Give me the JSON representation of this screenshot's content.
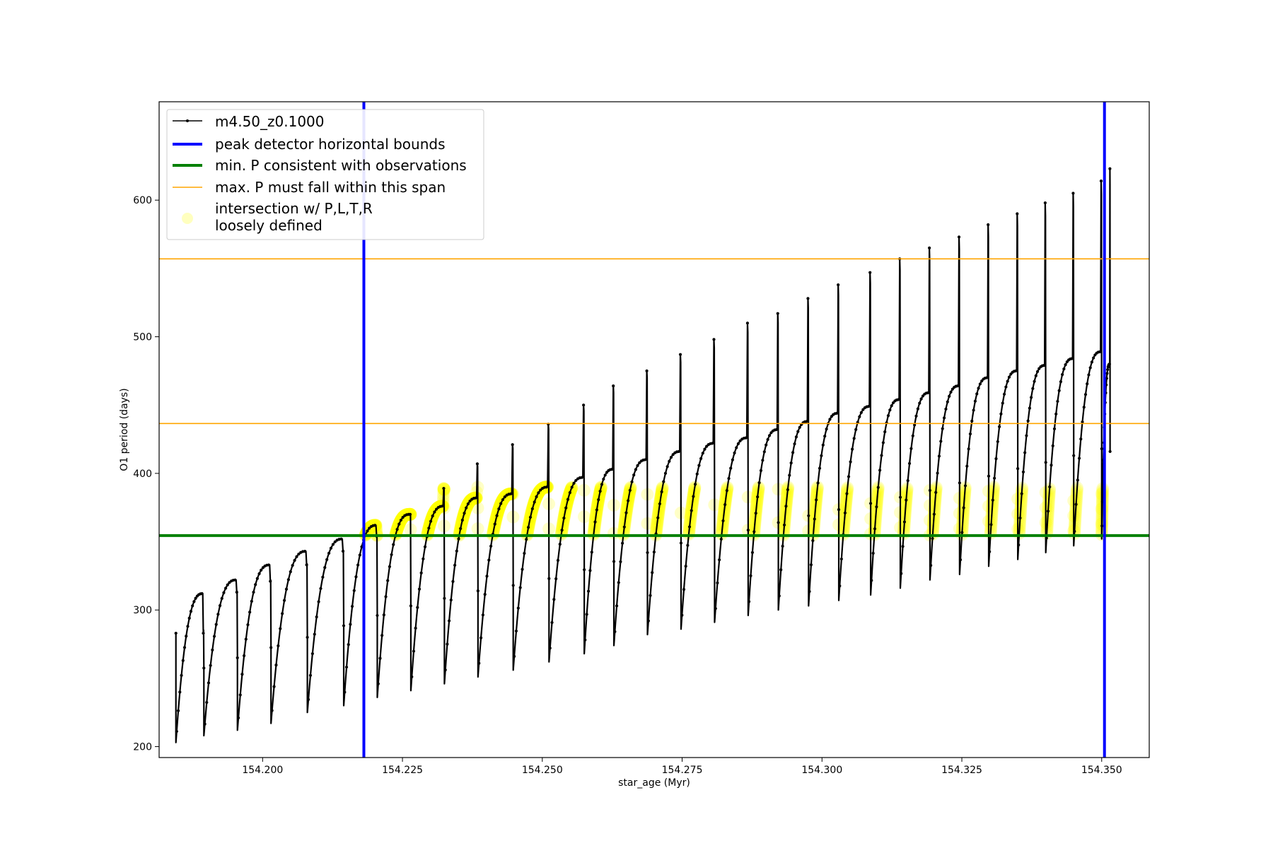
{
  "chart_data": {
    "type": "line",
    "xlabel": "star_age (Myr)",
    "ylabel": "O1 period (days)",
    "xlim": [
      154.1815,
      154.3585
    ],
    "ylim": [
      192,
      672
    ],
    "xticks": [
      154.2,
      154.225,
      154.25,
      154.275,
      154.3,
      154.325,
      154.35
    ],
    "xtick_labels": [
      "154.200",
      "154.225",
      "154.250",
      "154.275",
      "154.300",
      "154.325",
      "154.350"
    ],
    "yticks": [
      200,
      300,
      400,
      500,
      600
    ],
    "ytick_labels": [
      "200",
      "300",
      "400",
      "500",
      "600"
    ],
    "grid": false,
    "legend_position": "top-left",
    "series": [
      {
        "name": "m4.50_z0.1000",
        "kind": "line-with-point-markers",
        "color": "#000000",
        "pulses": [
          {
            "start": 154.1845,
            "end": 154.1895,
            "min": 203,
            "max": 312,
            "spike": 283
          },
          {
            "start": 154.1895,
            "end": 154.1955,
            "min": 208,
            "max": 322,
            "spike": 313
          },
          {
            "start": 154.1955,
            "end": 154.2015,
            "min": 212,
            "max": 333,
            "spike": 321
          },
          {
            "start": 154.2015,
            "end": 154.208,
            "min": 217,
            "max": 343,
            "spike": 333
          },
          {
            "start": 154.208,
            "end": 154.2145,
            "min": 225,
            "max": 352,
            "spike": 343
          },
          {
            "start": 154.2145,
            "end": 154.2205,
            "min": 230,
            "max": 362,
            "spike": 354
          },
          {
            "start": 154.2205,
            "end": 154.2265,
            "min": 236,
            "max": 370,
            "spike": 370
          },
          {
            "start": 154.2265,
            "end": 154.2325,
            "min": 241,
            "max": 376,
            "spike": 389
          },
          {
            "start": 154.2325,
            "end": 154.2385,
            "min": 246,
            "max": 382,
            "spike": 407
          },
          {
            "start": 154.2385,
            "end": 154.2448,
            "min": 251,
            "max": 385,
            "spike": 421
          },
          {
            "start": 154.2448,
            "end": 154.2512,
            "min": 256,
            "max": 390,
            "spike": 436
          },
          {
            "start": 154.2512,
            "end": 154.2575,
            "min": 262,
            "max": 397,
            "spike": 450
          },
          {
            "start": 154.2575,
            "end": 154.2628,
            "min": 268,
            "max": 403,
            "spike": 464
          },
          {
            "start": 154.2628,
            "end": 154.2688,
            "min": 274,
            "max": 410,
            "spike": 475
          },
          {
            "start": 154.2688,
            "end": 154.2748,
            "min": 282,
            "max": 416,
            "spike": 487
          },
          {
            "start": 154.2748,
            "end": 154.2808,
            "min": 286,
            "max": 422,
            "spike": 498
          },
          {
            "start": 154.2808,
            "end": 154.2868,
            "min": 291,
            "max": 426,
            "spike": 510
          },
          {
            "start": 154.2868,
            "end": 154.2922,
            "min": 296,
            "max": 432,
            "spike": 517
          },
          {
            "start": 154.2922,
            "end": 154.2976,
            "min": 300,
            "max": 438,
            "spike": 528
          },
          {
            "start": 154.2976,
            "end": 154.303,
            "min": 303,
            "max": 444,
            "spike": 538
          },
          {
            "start": 154.303,
            "end": 154.3087,
            "min": 307,
            "max": 449,
            "spike": 547
          },
          {
            "start": 154.3087,
            "end": 154.314,
            "min": 311,
            "max": 454,
            "spike": 557
          },
          {
            "start": 154.314,
            "end": 154.3193,
            "min": 316,
            "max": 459,
            "spike": 565
          },
          {
            "start": 154.3193,
            "end": 154.3246,
            "min": 322,
            "max": 464,
            "spike": 573
          },
          {
            "start": 154.3246,
            "end": 154.3298,
            "min": 326,
            "max": 470,
            "spike": 582
          },
          {
            "start": 154.3298,
            "end": 154.335,
            "min": 332,
            "max": 475,
            "spike": 590
          },
          {
            "start": 154.335,
            "end": 154.34,
            "min": 337,
            "max": 479,
            "spike": 598
          },
          {
            "start": 154.34,
            "end": 154.345,
            "min": 342,
            "max": 484,
            "spike": 605
          },
          {
            "start": 154.345,
            "end": 154.35,
            "min": 347,
            "max": 489,
            "spike": 614
          },
          {
            "start": 154.35,
            "end": 154.3515,
            "min": 352,
            "max": 480,
            "spike": 623
          }
        ]
      },
      {
        "name": "peak detector horizontal bounds",
        "kind": "vertical-lines",
        "color": "#0000ff",
        "x": [
          154.2181,
          154.3505
        ]
      },
      {
        "name": "min. P consistent with observations",
        "kind": "horizontal-line",
        "color": "#008000",
        "y": 354.5
      },
      {
        "name": "max. P must fall within this span",
        "kind": "horizontal-lines",
        "color": "#ffa500",
        "y": [
          436.5,
          557
        ]
      },
      {
        "name": "intersection w/ P,L,T,R\nloosely defined",
        "kind": "scatter-band",
        "color": "#ffff00",
        "y_range": [
          354.5,
          390
        ]
      }
    ]
  },
  "legend": {
    "entries": [
      {
        "label_lines": [
          "m4.50_z0.1000"
        ]
      },
      {
        "label_lines": [
          "peak detector horizontal bounds"
        ]
      },
      {
        "label_lines": [
          "min. P consistent with observations"
        ]
      },
      {
        "label_lines": [
          "max. P must fall within this span"
        ]
      },
      {
        "label_lines": [
          "intersection w/ P,L,T,R",
          "loosely defined"
        ]
      }
    ]
  }
}
